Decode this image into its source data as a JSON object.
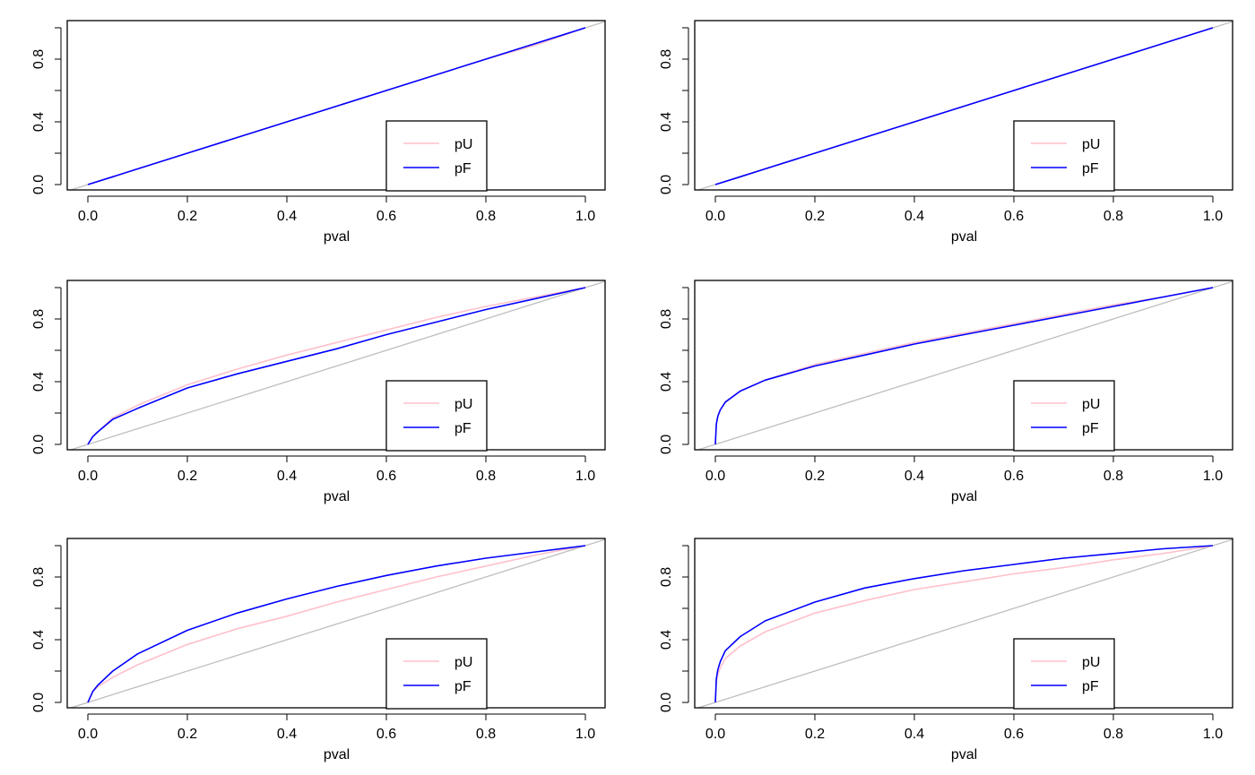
{
  "figure": {
    "layout": "3x2 grid of line plots",
    "diagonal_color": "#bebebe",
    "series_colors": {
      "pU": "#ffc0cb",
      "pF": "#0000ff"
    }
  },
  "chart_data": [
    {
      "type": "line",
      "xlabel": "pval",
      "ylabel": "",
      "xlim": [
        0,
        1
      ],
      "ylim": [
        0,
        1
      ],
      "xticks": [
        "0.0",
        "0.2",
        "0.4",
        "0.6",
        "0.8",
        "1.0"
      ],
      "yticks": [
        "0.0",
        "0.4",
        "0.8"
      ],
      "reference_line": "y = x",
      "legend": {
        "position": "bottom-right",
        "entries": [
          "pU",
          "pF"
        ]
      },
      "x": [
        0,
        0.05,
        0.1,
        0.2,
        0.3,
        0.4,
        0.5,
        0.6,
        0.7,
        0.8,
        0.9,
        1.0
      ],
      "series": [
        {
          "name": "pU",
          "color": "#ffc0cb",
          "values": [
            0,
            0.05,
            0.1,
            0.2,
            0.3,
            0.4,
            0.5,
            0.6,
            0.7,
            0.8,
            0.89,
            1.0
          ]
        },
        {
          "name": "pF",
          "color": "#0000ff",
          "values": [
            0,
            0.05,
            0.1,
            0.2,
            0.3,
            0.4,
            0.5,
            0.6,
            0.7,
            0.8,
            0.9,
            1.0
          ]
        }
      ]
    },
    {
      "type": "line",
      "xlabel": "pval",
      "ylabel": "",
      "xlim": [
        0,
        1
      ],
      "ylim": [
        0,
        1
      ],
      "xticks": [
        "0.0",
        "0.2",
        "0.4",
        "0.6",
        "0.8",
        "1.0"
      ],
      "yticks": [
        "0.0",
        "0.4",
        "0.8"
      ],
      "reference_line": "y = x",
      "legend": {
        "position": "bottom-right",
        "entries": [
          "pU",
          "pF"
        ]
      },
      "x": [
        0,
        0.05,
        0.1,
        0.2,
        0.3,
        0.4,
        0.5,
        0.6,
        0.7,
        0.8,
        0.9,
        1.0
      ],
      "series": [
        {
          "name": "pU",
          "color": "#ffc0cb",
          "values": [
            0,
            0.05,
            0.1,
            0.2,
            0.3,
            0.4,
            0.5,
            0.6,
            0.7,
            0.8,
            0.9,
            1.0
          ]
        },
        {
          "name": "pF",
          "color": "#0000ff",
          "values": [
            0,
            0.05,
            0.1,
            0.2,
            0.3,
            0.4,
            0.5,
            0.6,
            0.7,
            0.8,
            0.9,
            1.0
          ]
        }
      ]
    },
    {
      "type": "line",
      "xlabel": "pval",
      "ylabel": "",
      "xlim": [
        0,
        1
      ],
      "ylim": [
        0,
        1
      ],
      "xticks": [
        "0.0",
        "0.2",
        "0.4",
        "0.6",
        "0.8",
        "1.0"
      ],
      "yticks": [
        "0.0",
        "0.4",
        "0.8"
      ],
      "reference_line": "y = x",
      "legend": {
        "position": "bottom-right",
        "entries": [
          "pU",
          "pF"
        ]
      },
      "x": [
        0,
        0.01,
        0.02,
        0.05,
        0.1,
        0.2,
        0.3,
        0.4,
        0.5,
        0.6,
        0.7,
        0.8,
        0.9,
        1.0
      ],
      "series": [
        {
          "name": "pU",
          "color": "#ffc0cb",
          "values": [
            0,
            0.05,
            0.08,
            0.17,
            0.25,
            0.38,
            0.48,
            0.57,
            0.65,
            0.73,
            0.81,
            0.88,
            0.94,
            1.0
          ]
        },
        {
          "name": "pF",
          "color": "#0000ff",
          "values": [
            0,
            0.05,
            0.08,
            0.16,
            0.23,
            0.36,
            0.45,
            0.53,
            0.61,
            0.7,
            0.78,
            0.86,
            0.93,
            1.0
          ]
        }
      ]
    },
    {
      "type": "line",
      "xlabel": "pval",
      "ylabel": "",
      "xlim": [
        0,
        1
      ],
      "ylim": [
        0,
        1
      ],
      "xticks": [
        "0.0",
        "0.2",
        "0.4",
        "0.6",
        "0.8",
        "1.0"
      ],
      "yticks": [
        "0.0",
        "0.4",
        "0.8"
      ],
      "reference_line": "y = x",
      "legend": {
        "position": "bottom-right",
        "entries": [
          "pU",
          "pF"
        ]
      },
      "x": [
        0,
        0.002,
        0.005,
        0.01,
        0.02,
        0.05,
        0.1,
        0.2,
        0.3,
        0.4,
        0.5,
        0.6,
        0.7,
        0.8,
        0.9,
        1.0
      ],
      "series": [
        {
          "name": "pU",
          "color": "#ffc0cb",
          "values": [
            0,
            0.13,
            0.18,
            0.22,
            0.27,
            0.34,
            0.41,
            0.51,
            0.58,
            0.65,
            0.71,
            0.77,
            0.83,
            0.89,
            0.94,
            1.0
          ]
        },
        {
          "name": "pF",
          "color": "#0000ff",
          "values": [
            0,
            0.13,
            0.18,
            0.22,
            0.27,
            0.34,
            0.41,
            0.5,
            0.57,
            0.64,
            0.7,
            0.76,
            0.82,
            0.88,
            0.94,
            1.0
          ]
        }
      ]
    },
    {
      "type": "line",
      "xlabel": "pval",
      "ylabel": "",
      "xlim": [
        0,
        1
      ],
      "ylim": [
        0,
        1
      ],
      "xticks": [
        "0.0",
        "0.2",
        "0.4",
        "0.6",
        "0.8",
        "1.0"
      ],
      "yticks": [
        "0.0",
        "0.4",
        "0.8"
      ],
      "reference_line": "y = x",
      "legend": {
        "position": "bottom-right",
        "entries": [
          "pU",
          "pF"
        ]
      },
      "x": [
        0,
        0.01,
        0.02,
        0.05,
        0.1,
        0.2,
        0.3,
        0.4,
        0.5,
        0.6,
        0.7,
        0.8,
        0.9,
        1.0
      ],
      "series": [
        {
          "name": "pU",
          "color": "#ffc0cb",
          "values": [
            0,
            0.07,
            0.1,
            0.16,
            0.24,
            0.37,
            0.47,
            0.55,
            0.64,
            0.72,
            0.8,
            0.87,
            0.94,
            1.0
          ]
        },
        {
          "name": "pF",
          "color": "#0000ff",
          "values": [
            0,
            0.07,
            0.11,
            0.2,
            0.31,
            0.46,
            0.57,
            0.66,
            0.74,
            0.81,
            0.87,
            0.92,
            0.96,
            1.0
          ]
        }
      ]
    },
    {
      "type": "line",
      "xlabel": "pval",
      "ylabel": "",
      "xlim": [
        0,
        1
      ],
      "ylim": [
        0,
        1
      ],
      "xticks": [
        "0.0",
        "0.2",
        "0.4",
        "0.6",
        "0.8",
        "1.0"
      ],
      "yticks": [
        "0.0",
        "0.4",
        "0.8"
      ],
      "reference_line": "y = x",
      "legend": {
        "position": "bottom-right",
        "entries": [
          "pU",
          "pF"
        ]
      },
      "x": [
        0,
        0.002,
        0.005,
        0.01,
        0.02,
        0.05,
        0.1,
        0.2,
        0.3,
        0.4,
        0.5,
        0.6,
        0.7,
        0.8,
        0.9,
        1.0
      ],
      "series": [
        {
          "name": "pU",
          "color": "#ffc0cb",
          "values": [
            0,
            0.13,
            0.18,
            0.22,
            0.28,
            0.36,
            0.45,
            0.57,
            0.65,
            0.72,
            0.77,
            0.82,
            0.86,
            0.91,
            0.95,
            1.0
          ]
        },
        {
          "name": "pF",
          "color": "#0000ff",
          "values": [
            0,
            0.15,
            0.21,
            0.26,
            0.33,
            0.42,
            0.52,
            0.64,
            0.73,
            0.79,
            0.84,
            0.88,
            0.92,
            0.95,
            0.98,
            1.0
          ]
        }
      ]
    }
  ]
}
